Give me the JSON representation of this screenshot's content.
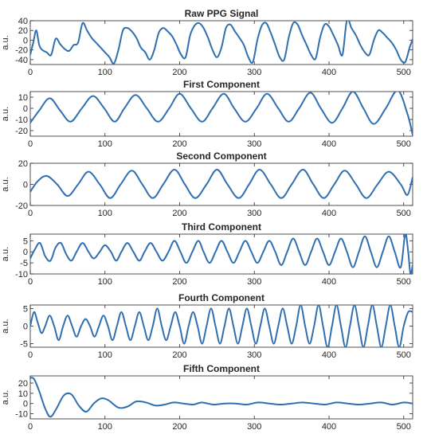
{
  "figure": {
    "line_color": "#2f6fb0",
    "axis_color": "#262626",
    "background": "#ffffff"
  },
  "chart_data": [
    {
      "type": "line",
      "title": "Raw PPG Signal",
      "ylabel": "a.u.",
      "xlim": [
        0,
        512
      ],
      "ylim": [
        -50,
        40
      ],
      "xticks": [
        0,
        100,
        200,
        300,
        400,
        500
      ],
      "yticks": [
        -40,
        -20,
        0,
        20,
        40
      ],
      "ytick_labels": [
        "-40",
        "-20",
        "0",
        "20",
        "40"
      ],
      "series": [
        {
          "x": [
            0,
            4,
            8,
            12,
            16,
            22,
            28,
            34,
            40,
            46,
            52,
            58,
            64,
            70,
            76,
            82,
            88,
            94,
            100,
            106,
            112,
            118,
            124,
            130,
            136,
            142,
            148,
            154,
            160,
            166,
            172,
            178,
            184,
            190,
            196,
            202,
            208,
            214,
            220,
            226,
            232,
            238,
            244,
            250,
            256,
            262,
            268,
            274,
            280,
            286,
            292,
            298,
            304,
            310,
            316,
            322,
            328,
            334,
            340,
            346,
            352,
            358,
            364,
            370,
            376,
            382,
            388,
            394,
            400,
            406,
            412,
            418,
            424,
            430,
            436,
            442,
            448,
            454,
            460,
            466,
            472,
            478,
            484,
            490,
            496,
            502,
            508,
            512
          ],
          "values": [
            -30,
            -5,
            20,
            -10,
            -20,
            -25,
            -30,
            3,
            -8,
            -18,
            -22,
            -10,
            -5,
            35,
            20,
            5,
            -5,
            -15,
            -25,
            -35,
            -48,
            -20,
            20,
            25,
            18,
            5,
            -15,
            -25,
            -40,
            -20,
            15,
            25,
            18,
            8,
            -10,
            -30,
            -35,
            10,
            30,
            35,
            25,
            5,
            -20,
            -35,
            -15,
            25,
            32,
            18,
            5,
            -10,
            -35,
            -45,
            0,
            30,
            35,
            15,
            -10,
            -35,
            -40,
            5,
            35,
            32,
            10,
            -10,
            -30,
            -38,
            5,
            32,
            28,
            10,
            -10,
            -30,
            42,
            25,
            10,
            -10,
            -25,
            -30,
            0,
            20,
            15,
            5,
            -5,
            -20,
            -40,
            -45,
            -15,
            2
          ]
        }
      ]
    },
    {
      "type": "line",
      "title": "First Component",
      "ylabel": "a.u.",
      "xlim": [
        0,
        512
      ],
      "ylim": [
        -25,
        15
      ],
      "xticks": [
        0,
        100,
        200,
        300,
        400,
        500
      ],
      "yticks": [
        -20,
        -10,
        0,
        10
      ],
      "ytick_labels": [
        "-20",
        "-10",
        "0",
        "10"
      ],
      "series": [
        {
          "x": [
            0,
            12,
            26,
            40,
            54,
            69,
            84,
            99,
            113,
            126,
            141,
            156,
            171,
            186,
            200,
            215,
            230,
            244,
            259,
            273,
            288,
            303,
            317,
            332,
            346,
            360,
            375,
            389,
            404,
            418,
            432,
            446,
            460,
            476,
            492,
            505,
            512
          ],
          "values": [
            -13,
            -2,
            9,
            -2,
            -12,
            0,
            11,
            0,
            -12,
            0,
            12,
            0,
            -12,
            0,
            13,
            0,
            -12,
            0,
            13,
            0,
            -12,
            0,
            13,
            0,
            -12,
            0,
            14,
            0,
            -13,
            0,
            15,
            0,
            -14,
            0,
            16,
            -5,
            -24
          ]
        }
      ]
    },
    {
      "type": "line",
      "title": "Second Component",
      "ylabel": "a.u.",
      "xlim": [
        0,
        512
      ],
      "ylim": [
        -20,
        20
      ],
      "xticks": [
        0,
        100,
        200,
        300,
        400,
        500
      ],
      "yticks": [
        -20,
        0,
        20
      ],
      "ytick_labels": [
        "-20",
        "0",
        "20"
      ],
      "series": [
        {
          "x": [
            0,
            10,
            22,
            36,
            50,
            64,
            78,
            93,
            107,
            121,
            136,
            150,
            164,
            178,
            193,
            207,
            221,
            236,
            250,
            264,
            279,
            293,
            307,
            322,
            336,
            350,
            365,
            379,
            393,
            407,
            421,
            436,
            450,
            465,
            480,
            496,
            505,
            512
          ],
          "values": [
            -7,
            3,
            8,
            0,
            -11,
            0,
            12,
            0,
            -13,
            0,
            13,
            0,
            -13,
            0,
            14,
            0,
            -13,
            0,
            14,
            0,
            -13,
            0,
            14,
            0,
            -13,
            0,
            14,
            0,
            -13,
            0,
            13,
            0,
            -13,
            0,
            12,
            0,
            -10,
            7
          ]
        }
      ]
    },
    {
      "type": "line",
      "title": "Third Component",
      "ylabel": "a.u.",
      "xlim": [
        0,
        512
      ],
      "ylim": [
        -10,
        8
      ],
      "xticks": [
        0,
        100,
        200,
        300,
        400,
        500
      ],
      "yticks": [
        -10,
        -5,
        0,
        5
      ],
      "ytick_labels": [
        "-10",
        "-5",
        "0",
        "5"
      ],
      "series": [
        {
          "x": [
            0,
            6,
            13,
            20,
            27,
            34,
            41,
            48,
            55,
            62,
            70,
            78,
            85,
            93,
            100,
            108,
            115,
            122,
            130,
            138,
            146,
            153,
            161,
            169,
            177,
            185,
            193,
            201,
            209,
            217,
            225,
            232,
            240,
            248,
            256,
            264,
            272,
            280,
            288,
            296,
            304,
            312,
            320,
            328,
            336,
            344,
            352,
            360,
            368,
            376,
            384,
            392,
            400,
            408,
            416,
            424,
            432,
            440,
            448,
            456,
            464,
            472,
            480,
            488,
            496,
            502,
            506,
            509,
            512
          ],
          "values": [
            -3,
            1,
            4,
            -2,
            -4,
            2,
            4,
            -1,
            -4,
            0,
            4,
            0,
            -3,
            0,
            3,
            0,
            -4,
            0,
            4,
            0,
            -4,
            0,
            4,
            0,
            -4,
            0,
            5,
            0,
            -5,
            0,
            5,
            0,
            -5,
            0,
            5,
            0,
            -5,
            0,
            5,
            0,
            -5,
            0,
            5,
            0,
            -6,
            0,
            6,
            0,
            -6,
            0,
            6,
            0,
            -6,
            0,
            6,
            0,
            -7,
            0,
            7,
            0,
            -7,
            0,
            7,
            0,
            -7,
            8,
            0,
            -10,
            -6
          ]
        }
      ]
    },
    {
      "type": "line",
      "title": "Fourth Component",
      "ylabel": "a.u.",
      "xlim": [
        0,
        512
      ],
      "ylim": [
        -6,
        6
      ],
      "xticks": [
        0,
        100,
        200,
        300,
        400,
        500
      ],
      "yticks": [
        -5,
        0,
        5
      ],
      "ytick_labels": [
        "-5",
        "0",
        "5"
      ],
      "series": [
        {
          "x": [
            0,
            5,
            10,
            15,
            20,
            26,
            32,
            38,
            44,
            50,
            56,
            62,
            68,
            74,
            80,
            86,
            92,
            98,
            104,
            110,
            116,
            122,
            128,
            134,
            140,
            146,
            152,
            158,
            164,
            170,
            176,
            182,
            188,
            194,
            200,
            206,
            212,
            218,
            224,
            230,
            236,
            242,
            248,
            254,
            260,
            266,
            272,
            278,
            284,
            290,
            296,
            302,
            308,
            314,
            320,
            326,
            332,
            338,
            344,
            350,
            356,
            362,
            368,
            374,
            380,
            386,
            392,
            398,
            404,
            410,
            416,
            422,
            428,
            434,
            440,
            446,
            452,
            458,
            464,
            470,
            476,
            482,
            488,
            494,
            500,
            506,
            512
          ],
          "values": [
            0,
            4,
            1,
            -2,
            0,
            3,
            0,
            -4,
            0,
            3,
            0,
            -3,
            0,
            2,
            0,
            -3,
            0,
            3,
            0,
            -4,
            0,
            4,
            0,
            -4,
            0,
            4,
            0,
            -4,
            0,
            5,
            0,
            -4,
            0,
            4,
            0,
            -5,
            0,
            4,
            0,
            -5,
            0,
            5,
            0,
            -5,
            0,
            5,
            0,
            -5,
            0,
            5,
            0,
            -5,
            0,
            5,
            0,
            -5,
            0,
            5,
            0,
            -5,
            0,
            6,
            0,
            -5,
            0,
            6,
            0,
            -6,
            0,
            6,
            0,
            -6,
            0,
            6,
            0,
            -6,
            0,
            6,
            0,
            -6,
            0,
            6,
            0,
            -6,
            0,
            4,
            4
          ]
        }
      ]
    },
    {
      "type": "line",
      "title": "Fifth Component",
      "ylabel": "a.u.",
      "xlim": [
        0,
        512
      ],
      "ylim": [
        -15,
        27
      ],
      "xticks": [
        0,
        100,
        200,
        300,
        400,
        500
      ],
      "yticks": [
        -10,
        0,
        10,
        20
      ],
      "ytick_labels": [
        "-10",
        "0",
        "10",
        "20"
      ],
      "series": [
        {
          "x": [
            0,
            5,
            12,
            20,
            27,
            35,
            45,
            55,
            65,
            75,
            85,
            95,
            105,
            118,
            130,
            142,
            155,
            168,
            180,
            192,
            205,
            218,
            230,
            245,
            260,
            275,
            290,
            305,
            320,
            335,
            350,
            365,
            380,
            395,
            410,
            425,
            440,
            455,
            470,
            485,
            500,
            512
          ],
          "values": [
            25,
            24,
            12,
            -5,
            -13,
            -5,
            8,
            9,
            -2,
            -8,
            0,
            5,
            3,
            -4,
            -3,
            2,
            1,
            -2,
            -1,
            1,
            0,
            -1,
            1,
            -1,
            0,
            0,
            -1,
            1,
            0,
            -1,
            0,
            1,
            0,
            -1,
            1,
            0,
            -1,
            0,
            1,
            -1,
            1,
            0
          ]
        }
      ]
    }
  ]
}
